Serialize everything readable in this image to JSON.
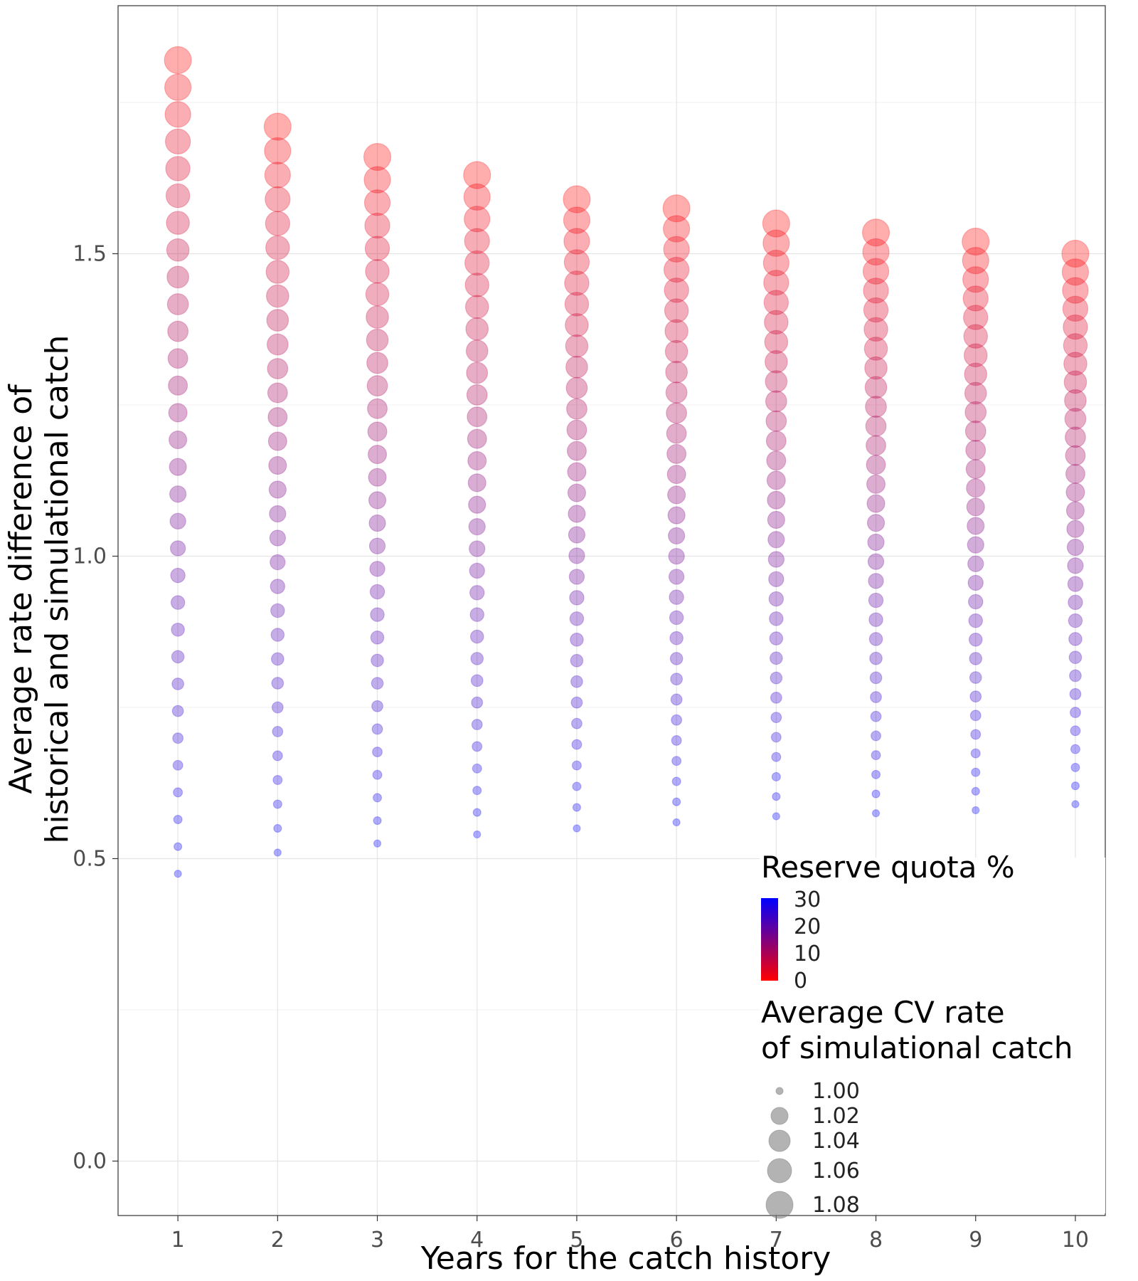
{
  "chart_data": {
    "type": "scatter",
    "xlabel": "Years for the catch history",
    "ylabel_lines": [
      "Average rate difference of",
      "historical and simulational catch"
    ],
    "x_ticks": [
      "1",
      "2",
      "3",
      "4",
      "5",
      "6",
      "7",
      "8",
      "9",
      "10"
    ],
    "y_ticks": [
      "0.0",
      "0.5",
      "1.0",
      "1.5"
    ],
    "xlim": [
      0.4,
      10.3
    ],
    "ylim": [
      -0.09,
      1.91
    ],
    "grid": true,
    "legend_position": "bottom-right inside",
    "color_legend": {
      "title": "Reserve quota %",
      "labels": [
        "30",
        "20",
        "10",
        "0"
      ],
      "low_color": "#ff0000",
      "high_color": "#0000ff"
    },
    "size_legend": {
      "title_lines": [
        "Average CV rate",
        "of simulational catch"
      ],
      "labels": [
        "1.00",
        "1.02",
        "1.04",
        "1.06",
        "1.08"
      ],
      "color": "#808080"
    },
    "reserve_quota_range": [
      0,
      30
    ],
    "cv_range": [
      1.0,
      1.09
    ],
    "series": [
      {
        "x": 1,
        "y_top": 1.82,
        "y_bottom": 0.475
      },
      {
        "x": 2,
        "y_top": 1.71,
        "y_bottom": 0.51
      },
      {
        "x": 3,
        "y_top": 1.66,
        "y_bottom": 0.525
      },
      {
        "x": 4,
        "y_top": 1.63,
        "y_bottom": 0.54
      },
      {
        "x": 5,
        "y_top": 1.59,
        "y_bottom": 0.55
      },
      {
        "x": 6,
        "y_top": 1.575,
        "y_bottom": 0.56
      },
      {
        "x": 7,
        "y_top": 1.55,
        "y_bottom": 0.57
      },
      {
        "x": 8,
        "y_top": 1.535,
        "y_bottom": 0.575
      },
      {
        "x": 9,
        "y_top": 1.52,
        "y_bottom": 0.58
      },
      {
        "x": 10,
        "y_top": 1.5,
        "y_bottom": 0.59
      }
    ],
    "points_per_series": 31
  }
}
